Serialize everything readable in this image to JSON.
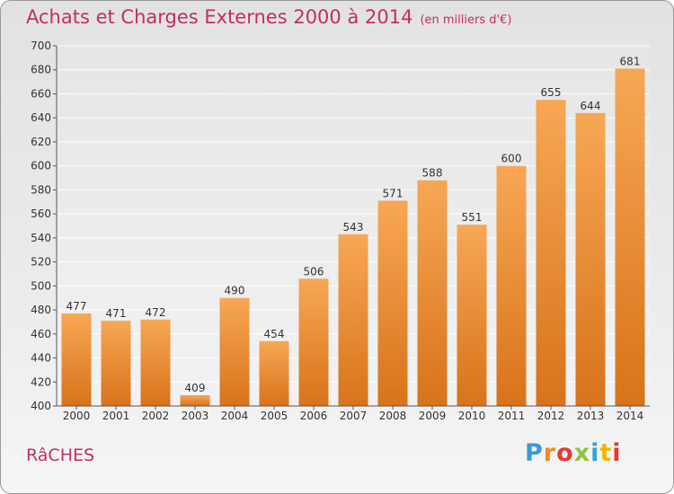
{
  "header": {
    "title": "Achats et Charges Externes 2000 à 2014",
    "unit": "(en milliers d'€)"
  },
  "footer": {
    "commune": "RâCHES",
    "brand": "Proxiti"
  },
  "colors": {
    "bar_top": "#f7a755",
    "bar_bottom": "#d8731a",
    "title": "#c0305a"
  },
  "chart_data": {
    "type": "bar",
    "title": "Achats et Charges Externes 2000 à 2014",
    "categories": [
      "2000",
      "2001",
      "2002",
      "2003",
      "2004",
      "2005",
      "2006",
      "2007",
      "2008",
      "2009",
      "2010",
      "2011",
      "2012",
      "2013",
      "2014"
    ],
    "values": [
      477,
      471,
      472,
      409,
      490,
      454,
      506,
      543,
      571,
      588,
      551,
      600,
      655,
      644,
      681
    ],
    "ylim": [
      400,
      700
    ],
    "yticks": [
      400,
      420,
      440,
      460,
      480,
      500,
      520,
      540,
      560,
      580,
      600,
      620,
      640,
      660,
      680,
      700
    ],
    "grid": true,
    "xlabel": "",
    "ylabel": ""
  }
}
